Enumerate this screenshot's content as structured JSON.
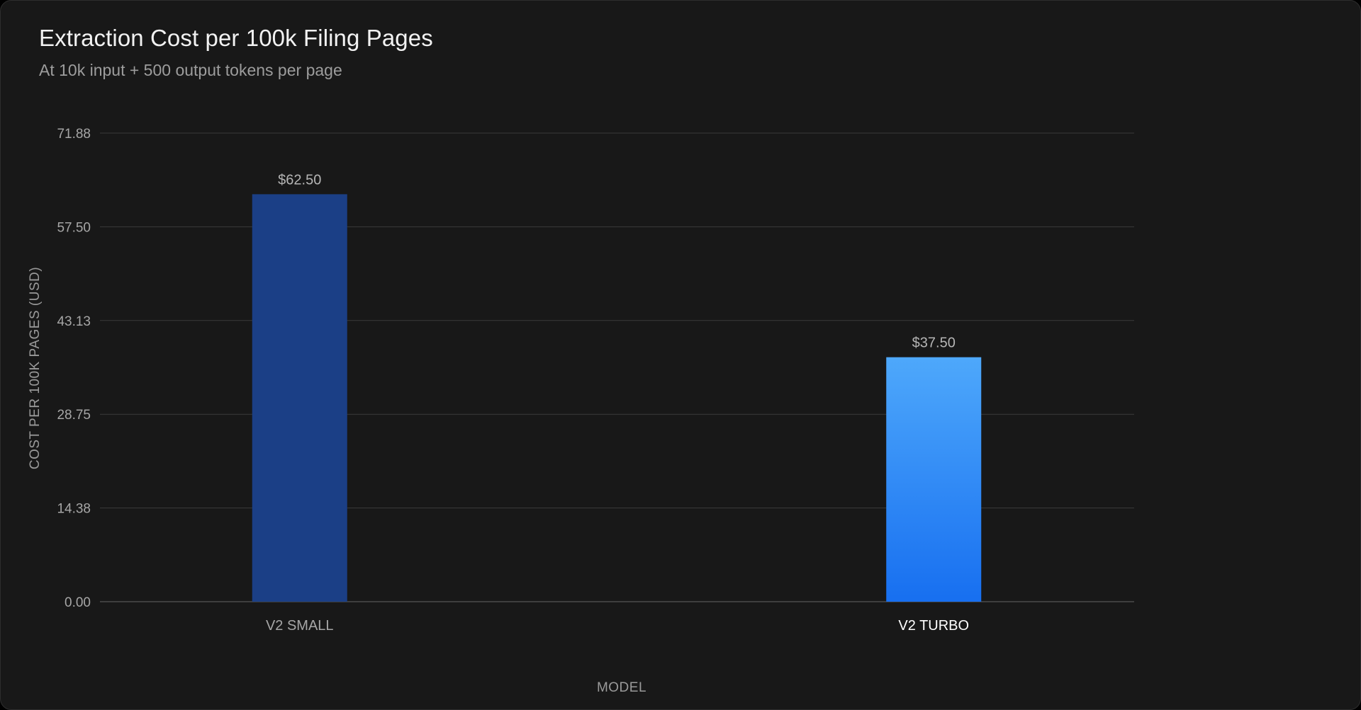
{
  "chart_data": {
    "type": "bar",
    "title": "Extraction Cost per 100k Filing Pages",
    "subtitle": "At 10k input + 500 output tokens per page",
    "xlabel": "MODEL",
    "ylabel": "COST PER 100K PAGES (USD)",
    "categories": [
      "V2 SMALL",
      "V2 TURBO"
    ],
    "values": [
      62.5,
      37.5
    ],
    "value_labels": [
      "$62.50",
      "$37.50"
    ],
    "highlighted_category": "V2 TURBO",
    "ylim": [
      0,
      71.88
    ],
    "yticks": [
      0,
      14.38,
      28.75,
      43.13,
      57.5,
      71.88
    ],
    "ytick_labels": [
      "0.00",
      "14.38",
      "28.75",
      "43.13",
      "57.50",
      "71.88"
    ],
    "grid": true,
    "legend": "none",
    "colors": {
      "v2_small": "#1b3f86",
      "v2_turbo_top": "#4ea8fb",
      "v2_turbo_bottom": "#176ff0",
      "gridline": "#3a3a3a",
      "background": "#181818"
    }
  }
}
